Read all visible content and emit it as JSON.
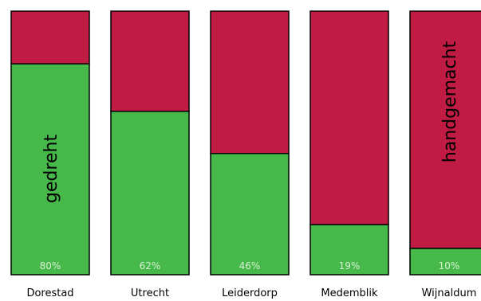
{
  "chart_data": {
    "type": "bar",
    "stacked": true,
    "categories": [
      "Dorestad",
      "Utrecht",
      "Leiderdorp",
      "Medemblik",
      "Wijnaldum"
    ],
    "series": [
      {
        "name": "gedreht",
        "color": "#47b94b",
        "values": [
          80,
          62,
          46,
          19,
          10
        ]
      },
      {
        "name": "handgemacht",
        "color": "#c01b42",
        "values": [
          20,
          38,
          54,
          81,
          90
        ]
      }
    ],
    "data_labels": [
      "80%",
      "62%",
      "46%",
      "19%",
      "10%"
    ],
    "ylim": [
      0,
      100
    ],
    "grid": false,
    "legend": "none"
  }
}
